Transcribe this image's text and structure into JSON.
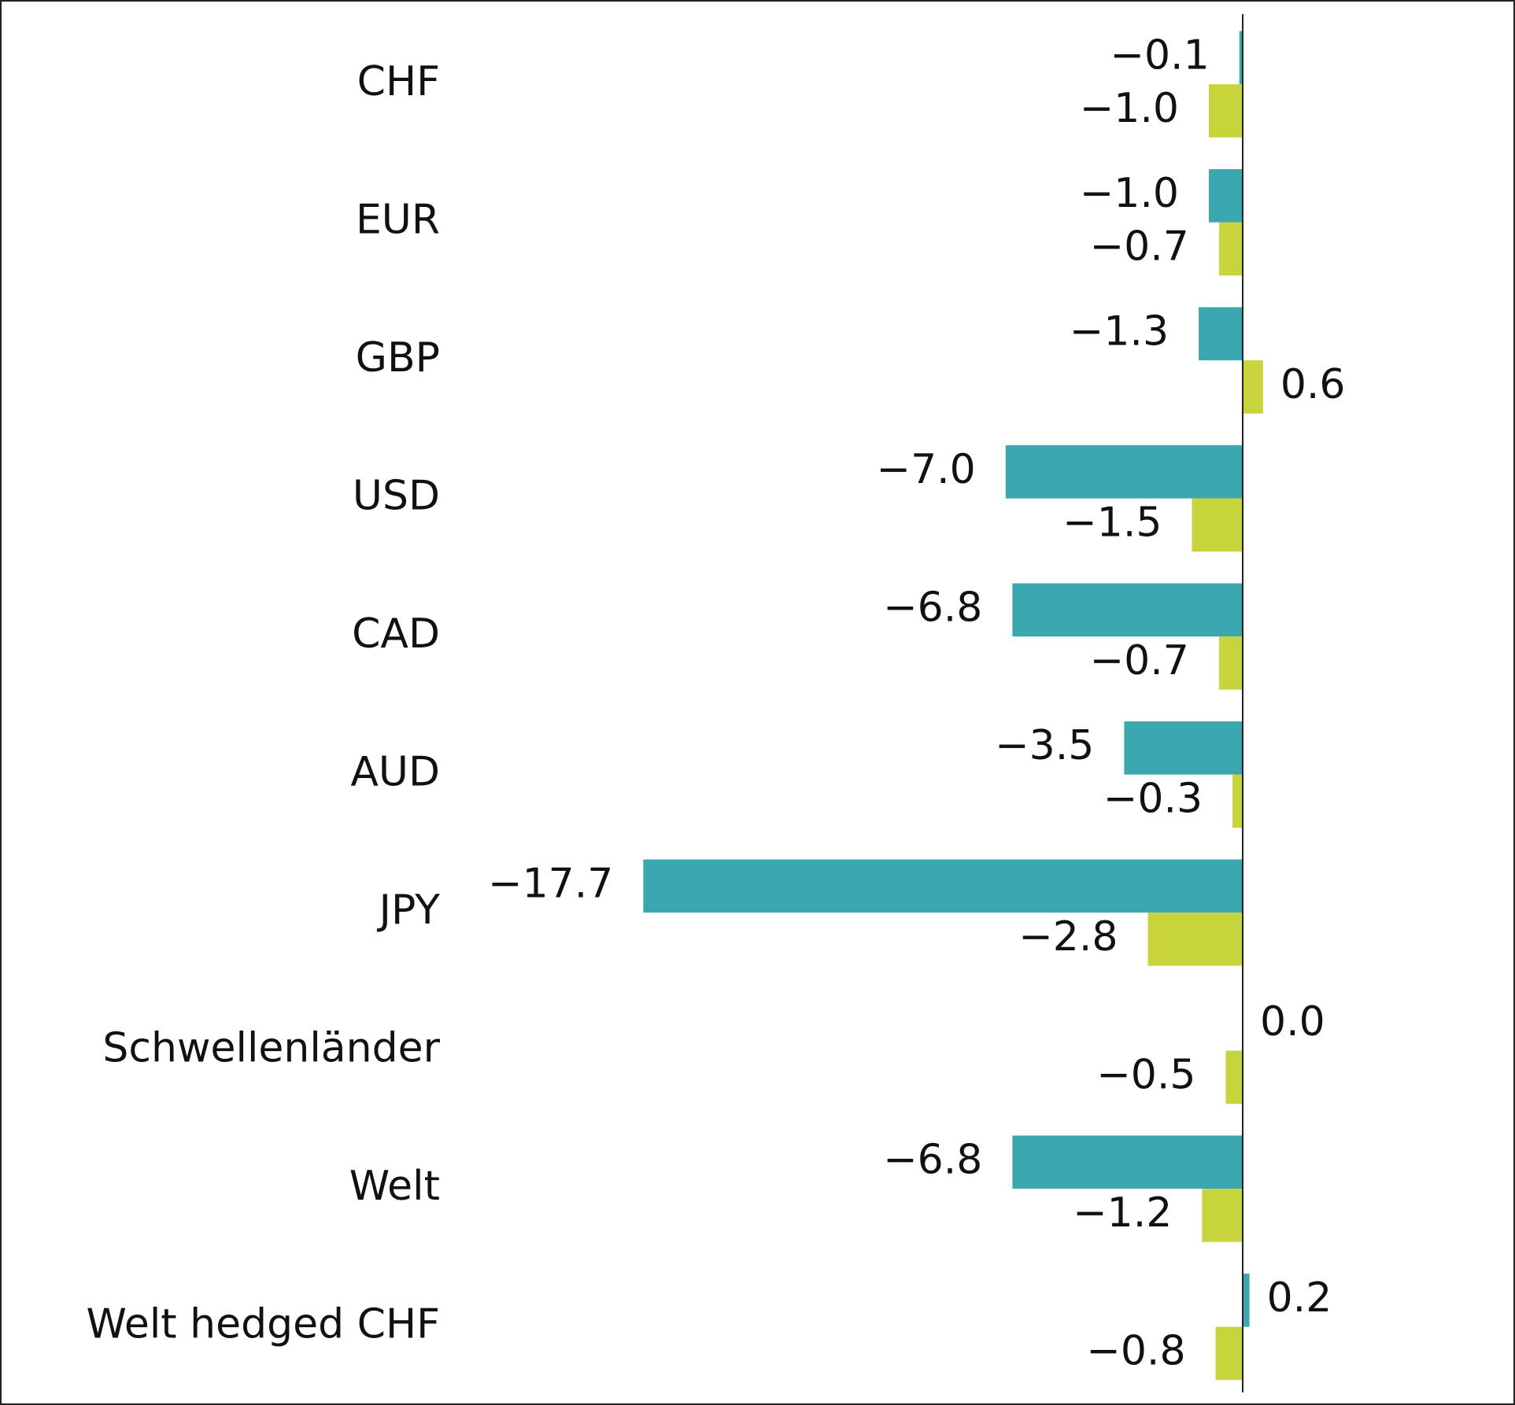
{
  "chart_data": {
    "type": "bar",
    "orientation": "horizontal",
    "categories": [
      "CHF",
      "EUR",
      "GBP",
      "USD",
      "CAD",
      "AUD",
      "JPY",
      "Schwellenländer",
      "Welt",
      "Welt hedged CHF"
    ],
    "series": [
      {
        "color": "#3aa8ae",
        "values": [
          -0.1,
          -1.0,
          -1.3,
          -7.0,
          -6.8,
          -3.5,
          -17.7,
          0.0,
          -6.8,
          0.2
        ],
        "value_labels": [
          "−0.1",
          "−1.0",
          "−1.3",
          "−7.0",
          "−6.8",
          "−3.5",
          "−17.7",
          "0.0",
          "−6.8",
          "0.2"
        ]
      },
      {
        "color": "#c8d43c",
        "values": [
          -1.0,
          -0.7,
          0.6,
          -1.5,
          -0.7,
          -0.3,
          -2.8,
          -0.5,
          -1.2,
          -0.8
        ],
        "value_labels": [
          "−1.0",
          "−0.7",
          "0.6",
          "−1.5",
          "−0.7",
          "−0.3",
          "−2.8",
          "−0.5",
          "−1.2",
          "−0.8"
        ]
      }
    ]
  }
}
